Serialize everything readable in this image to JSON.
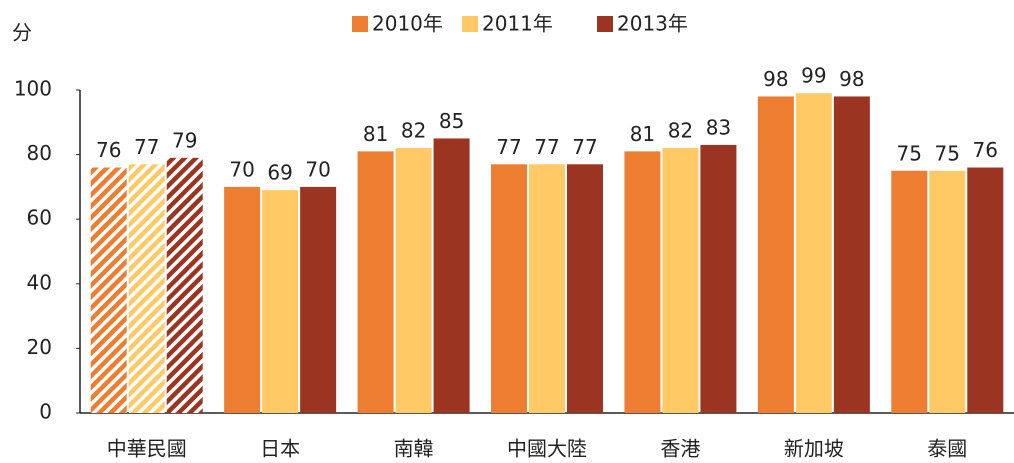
{
  "chart_data": {
    "type": "bar",
    "y_label": "分",
    "categories": [
      "中華民國",
      "日本",
      "南韓",
      "中國大陸",
      "香港",
      "新加坡",
      "泰國"
    ],
    "series": [
      {
        "name": "2010年",
        "color": "#ED7D31",
        "values": [
          76,
          70,
          81,
          77,
          81,
          98,
          75
        ]
      },
      {
        "name": "2011年",
        "color": "#FFC966",
        "values": [
          77,
          69,
          82,
          77,
          82,
          99,
          75
        ]
      },
      {
        "name": "2013年",
        "color": "#9B3420",
        "values": [
          79,
          70,
          85,
          77,
          83,
          98,
          76
        ]
      }
    ],
    "hatched_categories": [
      0
    ],
    "ylim": [
      0,
      100
    ],
    "yticks": [
      0,
      20,
      40,
      60,
      80,
      100
    ],
    "grid": false,
    "legend": "top"
  }
}
